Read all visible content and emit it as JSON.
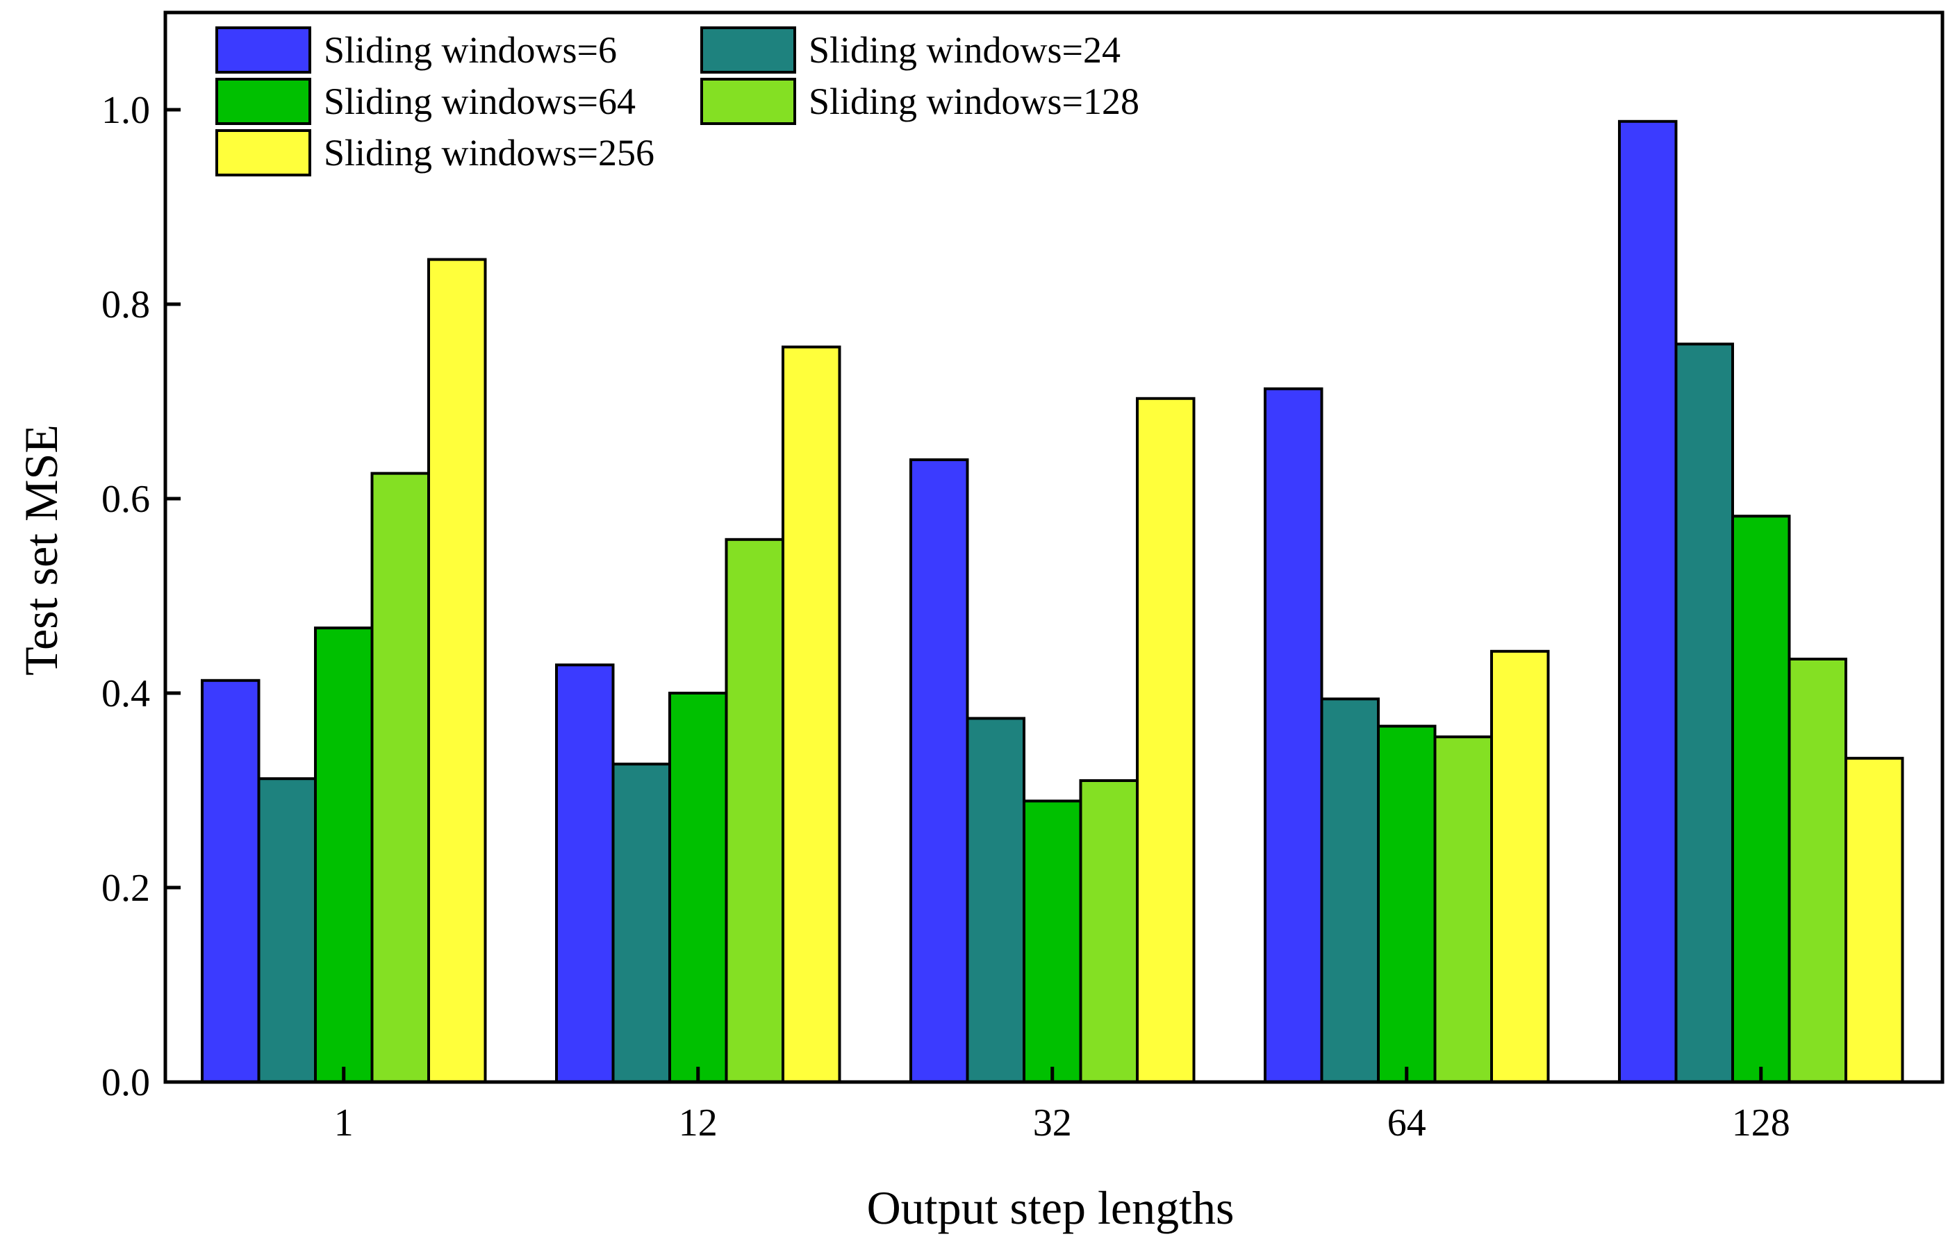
{
  "chart_data": {
    "type": "bar",
    "title": "",
    "xlabel": "Output step lengths",
    "ylabel": "Test set MSE",
    "ylim": [
      0,
      1.1
    ],
    "yticks": [
      "0.0",
      "0.2",
      "0.4",
      "0.6",
      "0.8",
      "1.0"
    ],
    "categories": [
      "1",
      "12",
      "32",
      "64",
      "128"
    ],
    "grid": false,
    "legend_position": "top-left",
    "series": [
      {
        "name": "Sliding windows=6",
        "color": "#3b3bff",
        "values": [
          0.413,
          0.429,
          0.64,
          0.713,
          0.988
        ]
      },
      {
        "name": "Sliding windows=24",
        "color": "#1e827e",
        "values": [
          0.312,
          0.327,
          0.374,
          0.394,
          0.759
        ]
      },
      {
        "name": "Sliding windows=64",
        "color": "#00c000",
        "values": [
          0.467,
          0.4,
          0.289,
          0.366,
          0.582
        ]
      },
      {
        "name": "Sliding windows=128",
        "color": "#84e023",
        "values": [
          0.626,
          0.558,
          0.31,
          0.355,
          0.435
        ]
      },
      {
        "name": "Sliding windows=256",
        "color": "#ffff3b",
        "values": [
          0.846,
          0.756,
          0.703,
          0.443,
          0.333
        ]
      }
    ]
  }
}
